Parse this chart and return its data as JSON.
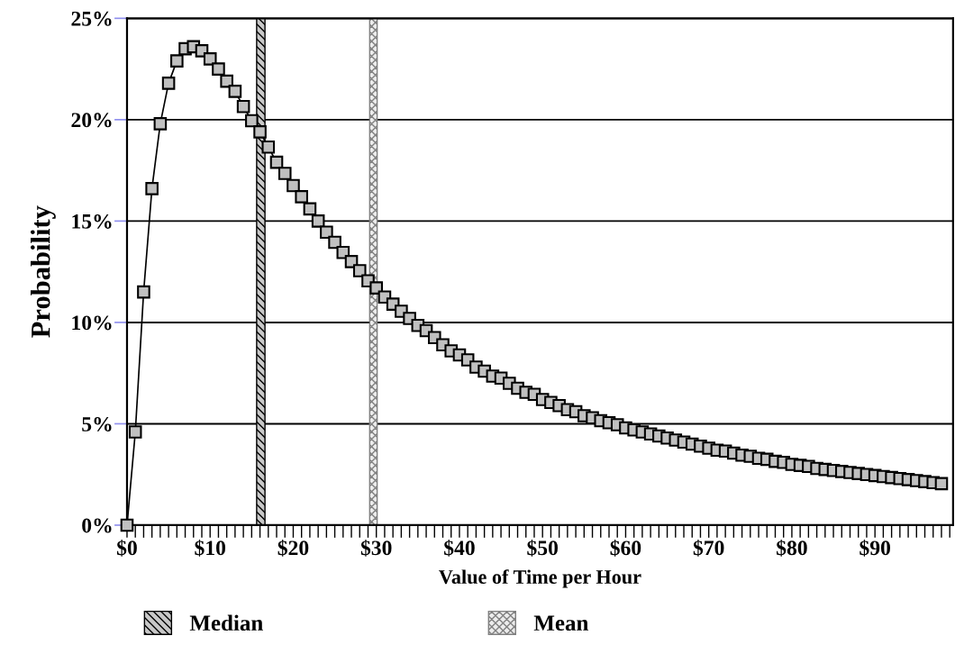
{
  "chart_data": {
    "type": "line",
    "xlabel": "Value of Time per Hour",
    "ylabel": "Probability",
    "x": [
      0,
      1,
      2,
      3,
      4,
      5,
      6,
      7,
      8,
      9,
      10,
      11,
      12,
      13,
      14,
      15,
      16,
      17,
      18,
      19,
      20,
      21,
      22,
      23,
      24,
      25,
      26,
      27,
      28,
      29,
      30,
      31,
      32,
      33,
      34,
      35,
      36,
      37,
      38,
      39,
      40,
      41,
      42,
      43,
      44,
      45,
      46,
      47,
      48,
      49,
      50,
      51,
      52,
      53,
      54,
      55,
      56,
      57,
      58,
      59,
      60,
      61,
      62,
      63,
      64,
      65,
      66,
      67,
      68,
      69,
      70,
      71,
      72,
      73,
      74,
      75,
      76,
      77,
      78,
      79,
      80,
      81,
      82,
      83,
      84,
      85,
      86,
      87,
      88,
      89,
      90,
      91,
      92,
      93,
      94,
      95,
      96,
      97,
      98
    ],
    "series": [
      {
        "color": "#c0c0c0",
        "values": [
          0,
          4.6,
          11.5,
          16.6,
          19.8,
          21.8,
          22.9,
          23.5,
          23.6,
          23.4,
          23.0,
          22.5,
          21.9,
          21.4,
          20.65,
          19.95,
          19.4,
          18.65,
          17.9,
          17.35,
          16.75,
          16.2,
          15.6,
          15.0,
          14.45,
          13.95,
          13.45,
          13.0,
          12.55,
          12.05,
          11.7,
          11.25,
          10.9,
          10.55,
          10.2,
          9.85,
          9.6,
          9.25,
          8.9,
          8.6,
          8.4,
          8.15,
          7.8,
          7.6,
          7.35,
          7.25,
          7.0,
          6.75,
          6.55,
          6.45,
          6.2,
          6.05,
          5.9,
          5.7,
          5.6,
          5.4,
          5.3,
          5.15,
          5.05,
          4.95,
          4.8,
          4.7,
          4.6,
          4.5,
          4.4,
          4.3,
          4.2,
          4.1,
          4.0,
          3.9,
          3.8,
          3.7,
          3.65,
          3.55,
          3.45,
          3.4,
          3.3,
          3.25,
          3.15,
          3.1,
          3.0,
          2.95,
          2.9,
          2.8,
          2.75,
          2.7,
          2.65,
          2.6,
          2.55,
          2.5,
          2.45,
          2.4,
          2.35,
          2.3,
          2.25,
          2.2,
          2.15,
          2.1,
          2.05
        ]
      }
    ],
    "marker": "square",
    "line_style": "solid",
    "xlim": [
      0,
      99.4
    ],
    "ylim": [
      0,
      25
    ],
    "xticks": [
      {
        "value": 0,
        "label": "$0"
      },
      {
        "value": 1,
        "label": null
      },
      {
        "value": 2,
        "label": null
      },
      {
        "value": 3,
        "label": null
      },
      {
        "value": 4,
        "label": null
      },
      {
        "value": 5,
        "label": null
      },
      {
        "value": 6,
        "label": null
      },
      {
        "value": 7,
        "label": null
      },
      {
        "value": 8,
        "label": null
      },
      {
        "value": 9,
        "label": null
      },
      {
        "value": 10,
        "label": "$10"
      },
      {
        "value": 11,
        "label": null
      },
      {
        "value": 12,
        "label": null
      },
      {
        "value": 13,
        "label": null
      },
      {
        "value": 14,
        "label": null
      },
      {
        "value": 15,
        "label": null
      },
      {
        "value": 16,
        "label": null
      },
      {
        "value": 17,
        "label": null
      },
      {
        "value": 18,
        "label": null
      },
      {
        "value": 19,
        "label": null
      },
      {
        "value": 20,
        "label": "$20"
      },
      {
        "value": 21,
        "label": null
      },
      {
        "value": 22,
        "label": null
      },
      {
        "value": 23,
        "label": null
      },
      {
        "value": 24,
        "label": null
      },
      {
        "value": 25,
        "label": null
      },
      {
        "value": 26,
        "label": null
      },
      {
        "value": 27,
        "label": null
      },
      {
        "value": 28,
        "label": null
      },
      {
        "value": 29,
        "label": null
      },
      {
        "value": 30,
        "label": "$30"
      },
      {
        "value": 31,
        "label": null
      },
      {
        "value": 32,
        "label": null
      },
      {
        "value": 33,
        "label": null
      },
      {
        "value": 34,
        "label": null
      },
      {
        "value": 35,
        "label": null
      },
      {
        "value": 36,
        "label": null
      },
      {
        "value": 37,
        "label": null
      },
      {
        "value": 38,
        "label": null
      },
      {
        "value": 39,
        "label": null
      },
      {
        "value": 40,
        "label": "$40"
      },
      {
        "value": 41,
        "label": null
      },
      {
        "value": 42,
        "label": null
      },
      {
        "value": 43,
        "label": null
      },
      {
        "value": 44,
        "label": null
      },
      {
        "value": 45,
        "label": null
      },
      {
        "value": 46,
        "label": null
      },
      {
        "value": 47,
        "label": null
      },
      {
        "value": 48,
        "label": null
      },
      {
        "value": 49,
        "label": null
      },
      {
        "value": 50,
        "label": "$50"
      },
      {
        "value": 51,
        "label": null
      },
      {
        "value": 52,
        "label": null
      },
      {
        "value": 53,
        "label": null
      },
      {
        "value": 54,
        "label": null
      },
      {
        "value": 55,
        "label": null
      },
      {
        "value": 56,
        "label": null
      },
      {
        "value": 57,
        "label": null
      },
      {
        "value": 58,
        "label": null
      },
      {
        "value": 59,
        "label": null
      },
      {
        "value": 60,
        "label": "$60"
      },
      {
        "value": 61,
        "label": null
      },
      {
        "value": 62,
        "label": null
      },
      {
        "value": 63,
        "label": null
      },
      {
        "value": 64,
        "label": null
      },
      {
        "value": 65,
        "label": null
      },
      {
        "value": 66,
        "label": null
      },
      {
        "value": 67,
        "label": null
      },
      {
        "value": 68,
        "label": null
      },
      {
        "value": 69,
        "label": null
      },
      {
        "value": 70,
        "label": "$70"
      },
      {
        "value": 71,
        "label": null
      },
      {
        "value": 72,
        "label": null
      },
      {
        "value": 73,
        "label": null
      },
      {
        "value": 74,
        "label": null
      },
      {
        "value": 75,
        "label": null
      },
      {
        "value": 76,
        "label": null
      },
      {
        "value": 77,
        "label": null
      },
      {
        "value": 78,
        "label": null
      },
      {
        "value": 79,
        "label": null
      },
      {
        "value": 80,
        "label": "$80"
      },
      {
        "value": 81,
        "label": null
      },
      {
        "value": 82,
        "label": null
      },
      {
        "value": 83,
        "label": null
      },
      {
        "value": 84,
        "label": null
      },
      {
        "value": 85,
        "label": null
      },
      {
        "value": 86,
        "label": null
      },
      {
        "value": 87,
        "label": null
      },
      {
        "value": 88,
        "label": null
      },
      {
        "value": 89,
        "label": null
      },
      {
        "value": 90,
        "label": "$90"
      },
      {
        "value": 91,
        "label": null
      },
      {
        "value": 92,
        "label": null
      },
      {
        "value": 93,
        "label": null
      },
      {
        "value": 94,
        "label": null
      },
      {
        "value": 95,
        "label": null
      },
      {
        "value": 96,
        "label": null
      },
      {
        "value": 97,
        "label": null
      },
      {
        "value": 98,
        "label": null
      },
      {
        "value": 99,
        "label": null
      }
    ],
    "yticks": [
      {
        "value": 0,
        "label": "0%"
      },
      {
        "value": 5,
        "label": "5%"
      },
      {
        "value": 10,
        "label": "10%"
      },
      {
        "value": 15,
        "label": "15%"
      },
      {
        "value": 20,
        "label": "20%"
      },
      {
        "value": 25,
        "label": "25%"
      }
    ],
    "grid": "y",
    "legend": "bottom",
    "bands": [
      {
        "axis": "x",
        "from": 15.6,
        "to": 16.6,
        "label": "Median",
        "color": "#000000"
      },
      {
        "axis": "x",
        "from": 29.2,
        "to": 30.1,
        "label": "Mean",
        "color": "#808080"
      }
    ]
  }
}
